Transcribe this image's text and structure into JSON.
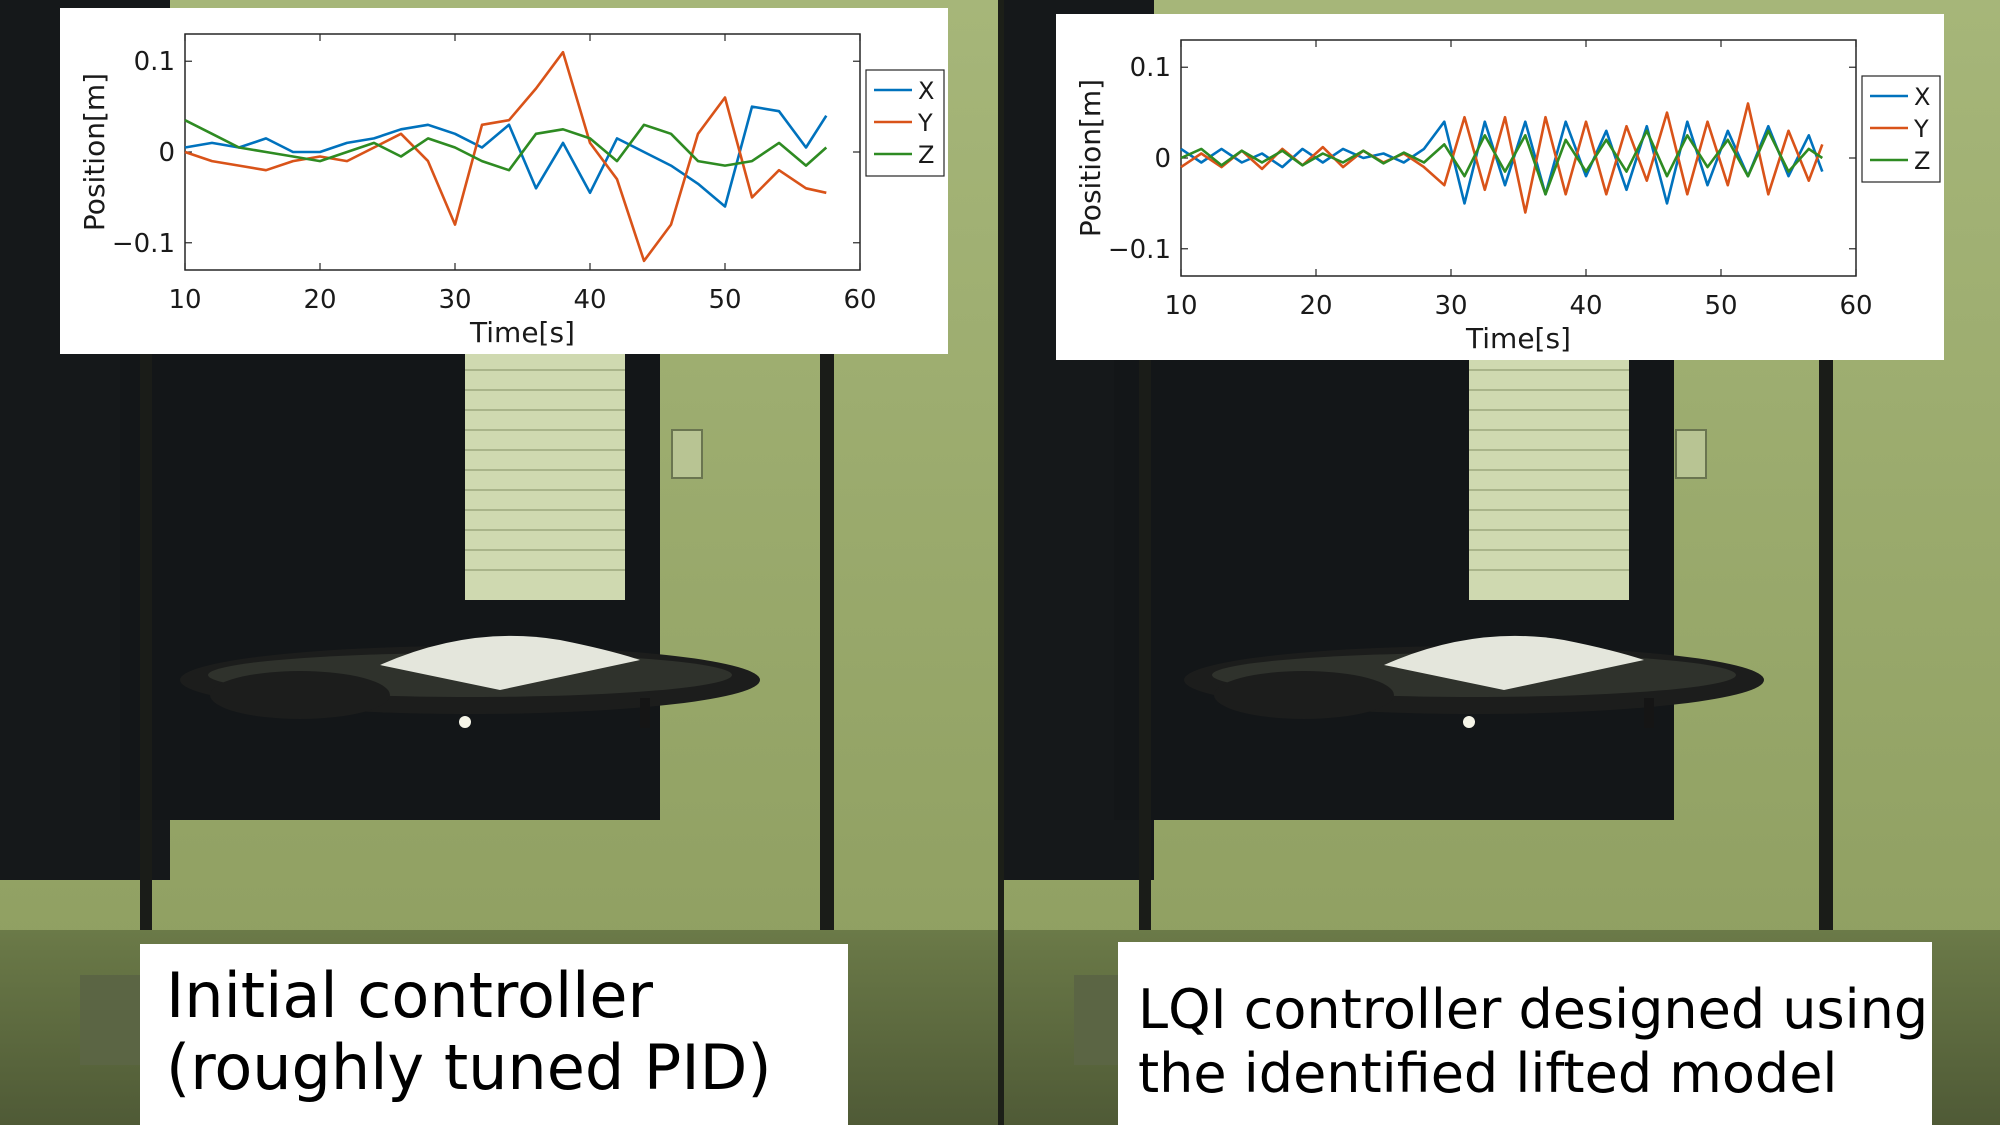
{
  "colors": {
    "x_series": "#0072bd",
    "y_series": "#d95319",
    "z_series": "#2e8b22",
    "wall": "#9aab6c",
    "curtain": "#16181a",
    "caption_bg": "#ffffff"
  },
  "scene": {
    "left_panel": "drone-hover-photo",
    "right_panel": "drone-hover-photo"
  },
  "chart_data": [
    {
      "type": "line",
      "xlabel": "Time[s]",
      "ylabel": "Position[m]",
      "xlim": [
        10,
        60
      ],
      "ylim": [
        -0.13,
        0.13
      ],
      "xticks": [
        10,
        20,
        30,
        40,
        50,
        60
      ],
      "yticks": [
        -0.1,
        0,
        0.1
      ],
      "ytick_labels": [
        "−0.1",
        "0",
        "0.1"
      ],
      "legend_position": "right",
      "x": [
        10,
        12,
        14,
        16,
        18,
        20,
        22,
        24,
        26,
        28,
        30,
        32,
        34,
        36,
        38,
        40,
        42,
        44,
        46,
        48,
        50,
        52,
        54,
        56,
        57.5
      ],
      "series": [
        {
          "name": "X",
          "color": "#0072bd",
          "values": [
            0.005,
            0.01,
            0.005,
            0.015,
            0.0,
            0.0,
            0.01,
            0.015,
            0.025,
            0.03,
            0.02,
            0.005,
            0.03,
            -0.04,
            0.01,
            -0.045,
            0.015,
            0.0,
            -0.015,
            -0.035,
            -0.06,
            0.05,
            0.045,
            0.005,
            0.04
          ]
        },
        {
          "name": "Y",
          "color": "#d95319",
          "values": [
            0.0,
            -0.01,
            -0.015,
            -0.02,
            -0.01,
            -0.005,
            -0.01,
            0.005,
            0.02,
            -0.01,
            -0.08,
            0.03,
            0.035,
            0.07,
            0.11,
            0.01,
            -0.03,
            -0.12,
            -0.08,
            0.02,
            0.06,
            -0.05,
            -0.02,
            -0.04,
            -0.045
          ]
        },
        {
          "name": "Z",
          "color": "#2e8b22",
          "values": [
            0.035,
            0.02,
            0.005,
            0.0,
            -0.005,
            -0.01,
            0.0,
            0.01,
            -0.005,
            0.015,
            0.005,
            -0.01,
            -0.02,
            0.02,
            0.025,
            0.015,
            -0.01,
            0.03,
            0.02,
            -0.01,
            -0.015,
            -0.01,
            0.01,
            -0.015,
            0.005
          ]
        }
      ]
    },
    {
      "type": "line",
      "xlabel": "Time[s]",
      "ylabel": "Position[m]",
      "xlim": [
        10,
        60
      ],
      "ylim": [
        -0.13,
        0.13
      ],
      "xticks": [
        10,
        20,
        30,
        40,
        50,
        60
      ],
      "yticks": [
        -0.1,
        0,
        0.1
      ],
      "ytick_labels": [
        "−0.1",
        "0",
        "0.1"
      ],
      "legend_position": "right",
      "x": [
        10,
        11.5,
        13,
        14.5,
        16,
        17.5,
        19,
        20.5,
        22,
        23.5,
        25,
        26.5,
        28,
        29.5,
        31,
        32.5,
        34,
        35.5,
        37,
        38.5,
        40,
        41.5,
        43,
        44.5,
        46,
        47.5,
        49,
        50.5,
        52,
        53.5,
        55,
        56.5,
        57.5
      ],
      "series": [
        {
          "name": "X",
          "color": "#0072bd",
          "values": [
            0.01,
            -0.005,
            0.01,
            -0.005,
            0.005,
            -0.01,
            0.01,
            -0.005,
            0.01,
            0.0,
            0.005,
            -0.005,
            0.01,
            0.04,
            -0.05,
            0.04,
            -0.03,
            0.04,
            -0.04,
            0.04,
            -0.02,
            0.03,
            -0.035,
            0.035,
            -0.05,
            0.04,
            -0.03,
            0.03,
            -0.02,
            0.035,
            -0.02,
            0.025,
            -0.015
          ]
        },
        {
          "name": "Y",
          "color": "#d95319",
          "values": [
            -0.01,
            0.005,
            -0.01,
            0.008,
            -0.012,
            0.01,
            -0.008,
            0.012,
            -0.01,
            0.008,
            -0.005,
            0.005,
            -0.01,
            -0.03,
            0.045,
            -0.035,
            0.045,
            -0.06,
            0.045,
            -0.04,
            0.04,
            -0.04,
            0.035,
            -0.025,
            0.05,
            -0.04,
            0.04,
            -0.03,
            0.06,
            -0.04,
            0.03,
            -0.025,
            0.015
          ]
        },
        {
          "name": "Z",
          "color": "#2e8b22",
          "values": [
            0.0,
            0.01,
            -0.008,
            0.008,
            -0.005,
            0.008,
            -0.008,
            0.005,
            -0.005,
            0.008,
            -0.006,
            0.006,
            -0.005,
            0.015,
            -0.02,
            0.025,
            -0.015,
            0.025,
            -0.04,
            0.02,
            -0.015,
            0.02,
            -0.015,
            0.03,
            -0.02,
            0.025,
            -0.01,
            0.02,
            -0.02,
            0.03,
            -0.015,
            0.01,
            0.0
          ]
        }
      ]
    }
  ],
  "captions": {
    "left": {
      "line1": "Initial controller",
      "line2": "(roughly tuned PID)"
    },
    "right": {
      "line1": "LQI controller designed using",
      "line2": "the identified lifted model"
    }
  }
}
